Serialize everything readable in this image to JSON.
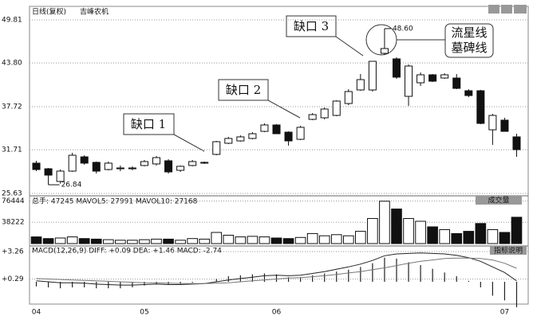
{
  "chart_data": [
    {
      "type": "candlestick",
      "title": "日线(复权)",
      "subtitle": "吉峰农机",
      "categories": [
        "04",
        null,
        null,
        null,
        null,
        null,
        null,
        null,
        null,
        "05",
        null,
        null,
        null,
        null,
        null,
        null,
        null,
        null,
        null,
        null,
        "06",
        null,
        null,
        null,
        null,
        null,
        null,
        null,
        null,
        null,
        null,
        null,
        null,
        null,
        null,
        null,
        null,
        null,
        null,
        "07",
        null
      ],
      "open": [
        29.85,
        29.07,
        27.3,
        28.74,
        30.73,
        29.96,
        28.96,
        29.07,
        29.07,
        29.52,
        29.74,
        30.18,
        28.85,
        29.52,
        29.85,
        31.07,
        32.62,
        32.95,
        33.29,
        34.28,
        35.17,
        34.17,
        33.17,
        35.95,
        36.17,
        36.5,
        38.16,
        40.05,
        40.05,
        45.15,
        44.38,
        39.16,
        41.05,
        42.16,
        41.71,
        41.71,
        39.94,
        39.94,
        34.5,
        35.84,
        33.51
      ],
      "high": [
        30.18,
        29.18,
        28.96,
        31.29,
        30.95,
        30.07,
        30.07,
        29.52,
        29.41,
        30.29,
        30.84,
        30.4,
        29.52,
        30.29,
        30.07,
        32.95,
        33.51,
        33.73,
        34.17,
        35.39,
        35.28,
        34.28,
        35.06,
        36.83,
        37.61,
        38.61,
        40.16,
        42.27,
        44.04,
        48.6,
        44.6,
        43.6,
        42.49,
        42.27,
        42.38,
        42.27,
        40.16,
        40.05,
        36.72,
        36.17,
        33.95
      ],
      "low": [
        28.74,
        26.84,
        27.0,
        28.63,
        29.63,
        28.4,
        28.85,
        28.74,
        28.85,
        29.41,
        29.52,
        28.4,
        28.63,
        29.41,
        29.74,
        30.95,
        32.51,
        32.84,
        33.17,
        34.17,
        33.95,
        32.29,
        33.06,
        35.84,
        35.95,
        36.39,
        37.94,
        39.94,
        39.83,
        44.93,
        41.6,
        37.83,
        40.6,
        41.16,
        41.6,
        40.16,
        39.05,
        35.28,
        32.4,
        34.28,
        30.73
      ],
      "close": [
        28.96,
        28.18,
        28.74,
        30.95,
        29.85,
        28.74,
        29.85,
        29.18,
        29.18,
        30.07,
        30.62,
        28.63,
        29.41,
        30.07,
        29.96,
        32.84,
        33.29,
        33.51,
        33.95,
        35.17,
        33.95,
        32.95,
        34.84,
        36.61,
        37.39,
        38.5,
        39.83,
        41.49,
        44.04,
        45.82,
        41.83,
        43.38,
        42.16,
        41.27,
        42.16,
        40.27,
        39.27,
        35.39,
        36.5,
        34.28,
        31.73
      ],
      "up_color": "#ffffff",
      "down_color": "#111111",
      "ylim": [
        25.63,
        49.81
      ],
      "yticks": [
        49.81,
        {
          "value": 43.8,
          "label": "43.80"
        },
        37.72,
        31.71,
        25.63
      ],
      "grid": true,
      "high_label": {
        "value": 48.6,
        "label": "48.60"
      },
      "low_label": 26.84,
      "annotations": [
        "缺口 1",
        "缺口 2",
        "缺口 3",
        "流星线",
        "墓碑线"
      ]
    },
    {
      "type": "bar",
      "title": "总手: 47245 MAVOL5: 27991 MAVOL10: 27168",
      "label": "成交量",
      "values": [
        12000,
        9000,
        10000,
        12000,
        9000,
        8000,
        7000,
        6000,
        6000,
        7000,
        8000,
        8000,
        6000,
        9000,
        8000,
        20000,
        15000,
        12000,
        13000,
        12000,
        10000,
        9000,
        11000,
        18000,
        14000,
        16000,
        14000,
        22000,
        45000,
        76000,
        62000,
        45000,
        40000,
        30000,
        25000,
        18000,
        22000,
        36000,
        25000,
        20000,
        47245
      ],
      "ylim": [
        0,
        82800
      ],
      "yticks": [
        76444,
        38222
      ],
      "grid": true
    },
    {
      "type": "line",
      "title": "MACD(12,26,9) DIFF: +0.09 DEA: +1.46 MACD: -2.74",
      "label": "指标说明",
      "series": [
        {
          "color": "#222222",
          "values": [
            0.1,
            0.0,
            -0.1,
            -0.1,
            -0.15,
            -0.25,
            -0.3,
            -0.35,
            -0.35,
            -0.3,
            -0.25,
            -0.3,
            -0.3,
            -0.25,
            -0.2,
            0.0,
            0.2,
            0.35,
            0.5,
            0.65,
            0.7,
            0.65,
            0.7,
            0.9,
            1.1,
            1.35,
            1.6,
            1.9,
            2.3,
            2.8,
            3.0,
            3.05,
            3.1,
            3.05,
            3.0,
            2.85,
            2.6,
            2.2,
            1.6,
            1.0,
            0.09
          ]
        },
        {
          "color": "#777777",
          "values": [
            0.35,
            0.3,
            0.25,
            0.2,
            0.15,
            0.1,
            0.05,
            0.0,
            -0.05,
            -0.1,
            -0.12,
            -0.15,
            -0.18,
            -0.2,
            -0.2,
            -0.15,
            -0.1,
            0.0,
            0.1,
            0.2,
            0.3,
            0.4,
            0.45,
            0.55,
            0.65,
            0.8,
            0.95,
            1.1,
            1.3,
            1.5,
            1.75,
            2.0,
            2.2,
            2.35,
            2.5,
            2.55,
            2.55,
            2.5,
            2.35,
            2.0,
            1.46
          ]
        }
      ],
      "histogram": [
        -0.5,
        -0.6,
        -0.7,
        -0.6,
        -0.6,
        -0.7,
        -0.7,
        -0.7,
        -0.6,
        -0.4,
        -0.26,
        -0.3,
        -0.24,
        -0.1,
        0.0,
        0.3,
        0.6,
        0.7,
        0.8,
        0.9,
        0.8,
        0.5,
        0.5,
        0.7,
        0.9,
        1.1,
        1.3,
        1.6,
        2.0,
        2.6,
        2.5,
        2.1,
        1.8,
        1.4,
        1.0,
        0.6,
        0.1,
        -0.6,
        -1.5,
        -2.0,
        -2.74
      ],
      "ylim": [
        -2.4,
        3.6
      ],
      "yticks": [
        {
          "value": 3.26,
          "label": "+3.26"
        },
        {
          "value": 0.29,
          "label": "+0.29"
        }
      ],
      "grid": true
    }
  ]
}
